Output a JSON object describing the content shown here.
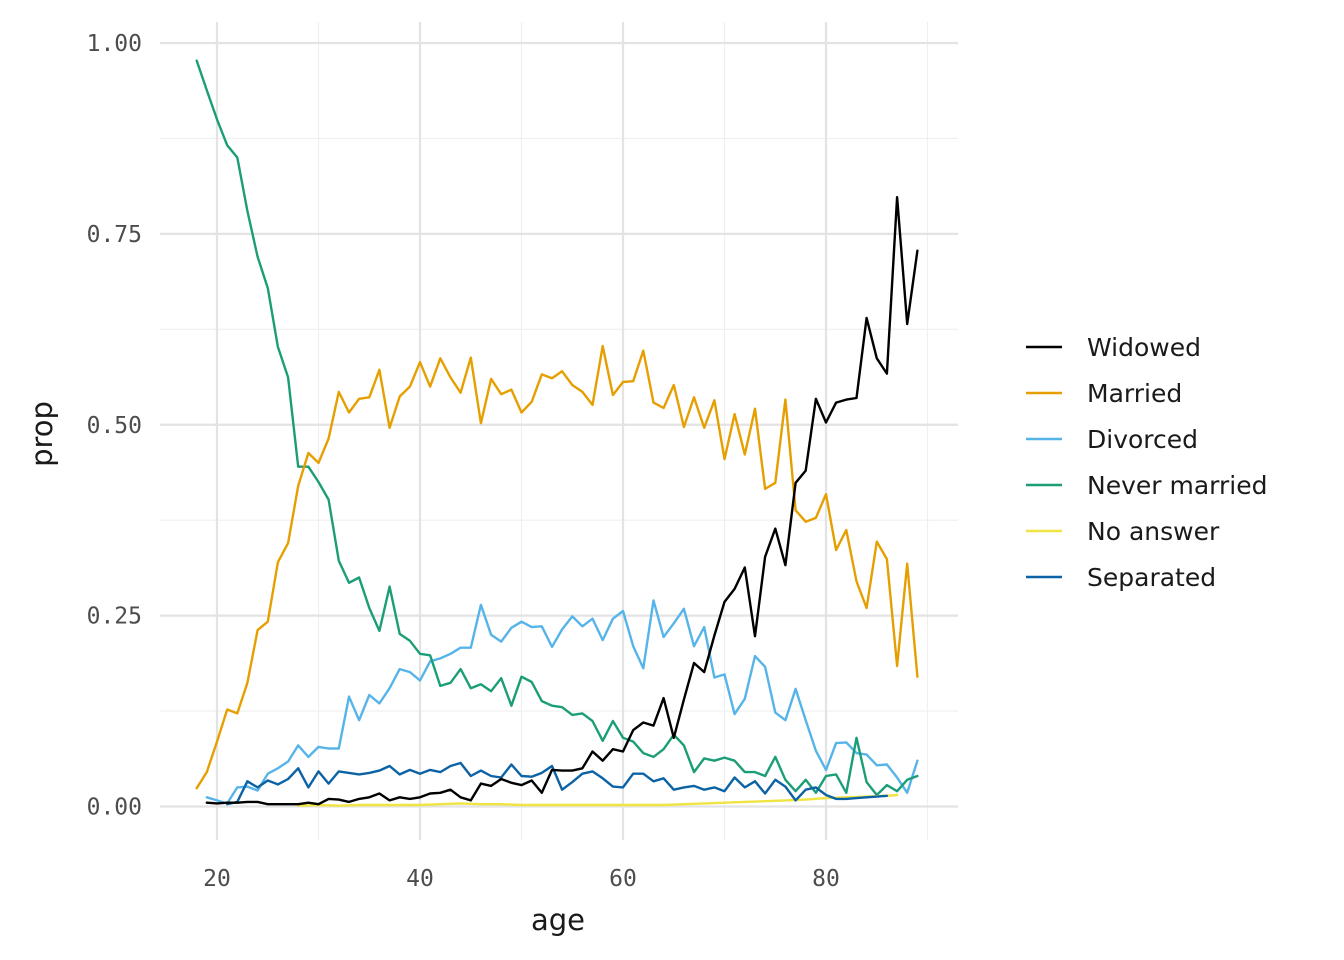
{
  "chart_data": {
    "type": "line",
    "xlabel": "age",
    "ylabel": "prop",
    "xlim": [
      15,
      91.5
    ],
    "ylim": [
      -0.04,
      1.02
    ],
    "x_ticks": [
      20,
      40,
      60,
      80
    ],
    "x_tick_labels": [
      "20",
      "40",
      "60",
      "80"
    ],
    "y_ticks": [
      0,
      0.25,
      0.5,
      0.75,
      1.0
    ],
    "y_tick_labels": [
      "0.00",
      "0.25",
      "0.50",
      "0.75",
      "1.00"
    ],
    "grid": true,
    "legend_position": "right",
    "series": [
      {
        "name": "Widowed",
        "color": "#000000",
        "x": [
          19,
          20,
          21,
          22,
          23,
          24,
          25,
          26,
          27,
          28,
          29,
          30,
          31,
          32,
          33,
          34,
          35,
          36,
          37,
          38,
          39,
          40,
          41,
          42,
          43,
          44,
          45,
          46,
          47,
          48,
          49,
          50,
          51,
          52,
          53,
          54,
          55,
          56,
          57,
          58,
          59,
          60,
          61,
          62,
          63,
          64,
          65,
          66,
          67,
          68,
          69,
          70,
          71,
          72,
          73,
          74,
          75,
          76,
          77,
          78,
          79,
          80,
          81,
          82,
          83,
          84,
          85,
          86,
          87,
          88,
          89
        ],
        "y": [
          0.005,
          0.004,
          0.005,
          0.005,
          0.006,
          0.006,
          0.003,
          0.003,
          0.003,
          0.003,
          0.005,
          0.003,
          0.01,
          0.009,
          0.006,
          0.01,
          0.012,
          0.017,
          0.008,
          0.012,
          0.01,
          0.012,
          0.017,
          0.018,
          0.022,
          0.012,
          0.008,
          0.03,
          0.027,
          0.036,
          0.031,
          0.028,
          0.034,
          0.018,
          0.048,
          0.047,
          0.047,
          0.05,
          0.072,
          0.06,
          0.075,
          0.072,
          0.1,
          0.11,
          0.106,
          0.142,
          0.09,
          0.14,
          0.188,
          0.176,
          0.224,
          0.268,
          0.285,
          0.313,
          0.223,
          0.327,
          0.364,
          0.316,
          0.424,
          0.44,
          0.534,
          0.503,
          0.529,
          0.533,
          0.535,
          0.64,
          0.587,
          0.567,
          0.798,
          0.632,
          0.728
        ]
      },
      {
        "name": "Married",
        "color": "#E69F00",
        "x": [
          18,
          19,
          20,
          21,
          22,
          23,
          24,
          25,
          26,
          27,
          28,
          29,
          30,
          31,
          32,
          33,
          34,
          35,
          36,
          37,
          38,
          39,
          40,
          41,
          42,
          43,
          44,
          45,
          46,
          47,
          48,
          49,
          50,
          51,
          52,
          53,
          54,
          55,
          56,
          57,
          58,
          59,
          60,
          61,
          62,
          63,
          64,
          65,
          66,
          67,
          68,
          69,
          70,
          71,
          72,
          73,
          74,
          75,
          76,
          77,
          78,
          79,
          80,
          81,
          82,
          83,
          84,
          85,
          86,
          87,
          88,
          89
        ],
        "y": [
          0.024,
          0.045,
          0.085,
          0.127,
          0.122,
          0.162,
          0.231,
          0.242,
          0.32,
          0.345,
          0.42,
          0.463,
          0.45,
          0.482,
          0.543,
          0.516,
          0.534,
          0.536,
          0.572,
          0.496,
          0.537,
          0.55,
          0.582,
          0.55,
          0.587,
          0.562,
          0.542,
          0.588,
          0.502,
          0.56,
          0.54,
          0.546,
          0.516,
          0.53,
          0.566,
          0.561,
          0.57,
          0.552,
          0.543,
          0.526,
          0.603,
          0.539,
          0.556,
          0.557,
          0.597,
          0.529,
          0.522,
          0.552,
          0.497,
          0.536,
          0.496,
          0.532,
          0.455,
          0.514,
          0.461,
          0.521,
          0.416,
          0.424,
          0.533,
          0.388,
          0.373,
          0.378,
          0.409,
          0.336,
          0.362,
          0.295,
          0.26,
          0.347,
          0.324,
          0.184,
          0.318,
          0.17
        ]
      },
      {
        "name": "Divorced",
        "color": "#56B4E9",
        "x": [
          19,
          20,
          21,
          22,
          23,
          24,
          25,
          26,
          27,
          28,
          29,
          30,
          31,
          32,
          33,
          34,
          35,
          36,
          37,
          38,
          39,
          40,
          41,
          42,
          43,
          44,
          45,
          46,
          47,
          48,
          49,
          50,
          51,
          52,
          53,
          54,
          55,
          56,
          57,
          58,
          59,
          60,
          61,
          62,
          63,
          64,
          65,
          66,
          67,
          68,
          69,
          70,
          71,
          72,
          73,
          74,
          75,
          76,
          77,
          78,
          79,
          80,
          81,
          82,
          83,
          84,
          85,
          86,
          87,
          88,
          89
        ],
        "y": [
          0.012,
          0.008,
          0.004,
          0.025,
          0.026,
          0.021,
          0.043,
          0.05,
          0.059,
          0.08,
          0.065,
          0.078,
          0.076,
          0.076,
          0.144,
          0.113,
          0.146,
          0.135,
          0.155,
          0.18,
          0.176,
          0.165,
          0.19,
          0.194,
          0.2,
          0.208,
          0.208,
          0.264,
          0.225,
          0.216,
          0.234,
          0.242,
          0.235,
          0.236,
          0.209,
          0.232,
          0.249,
          0.236,
          0.246,
          0.218,
          0.246,
          0.256,
          0.21,
          0.181,
          0.27,
          0.222,
          0.24,
          0.259,
          0.21,
          0.235,
          0.169,
          0.173,
          0.121,
          0.141,
          0.197,
          0.183,
          0.123,
          0.113,
          0.154,
          0.113,
          0.073,
          0.048,
          0.083,
          0.084,
          0.07,
          0.068,
          0.054,
          0.055,
          0.038,
          0.018,
          0.06
        ]
      },
      {
        "name": "Never married",
        "color": "#1B9E77",
        "x": [
          18,
          19,
          20,
          21,
          22,
          23,
          24,
          25,
          26,
          27,
          28,
          29,
          30,
          31,
          32,
          33,
          34,
          35,
          36,
          37,
          38,
          39,
          40,
          41,
          42,
          43,
          44,
          45,
          46,
          47,
          48,
          49,
          50,
          51,
          52,
          53,
          54,
          55,
          56,
          57,
          58,
          59,
          60,
          61,
          62,
          63,
          64,
          65,
          66,
          67,
          68,
          69,
          70,
          71,
          72,
          73,
          74,
          75,
          76,
          77,
          78,
          79,
          80,
          81,
          82,
          83,
          84,
          85,
          86,
          87,
          88,
          89
        ],
        "y": [
          0.977,
          0.938,
          0.9,
          0.866,
          0.85,
          0.78,
          0.72,
          0.679,
          0.602,
          0.562,
          0.445,
          0.445,
          0.425,
          0.402,
          0.322,
          0.293,
          0.3,
          0.26,
          0.23,
          0.288,
          0.226,
          0.217,
          0.2,
          0.198,
          0.158,
          0.162,
          0.18,
          0.155,
          0.16,
          0.151,
          0.168,
          0.132,
          0.17,
          0.163,
          0.138,
          0.132,
          0.13,
          0.12,
          0.122,
          0.112,
          0.086,
          0.112,
          0.09,
          0.085,
          0.07,
          0.065,
          0.075,
          0.094,
          0.08,
          0.045,
          0.063,
          0.06,
          0.064,
          0.06,
          0.045,
          0.045,
          0.04,
          0.065,
          0.035,
          0.02,
          0.035,
          0.018,
          0.04,
          0.042,
          0.018,
          0.09,
          0.032,
          0.015,
          0.028,
          0.02,
          0.035,
          0.04
        ]
      },
      {
        "name": "No answer",
        "color": "#F0E442",
        "x": [
          28,
          30,
          32,
          34,
          36,
          38,
          40,
          42,
          44,
          46,
          48,
          50,
          52,
          54,
          56,
          58,
          60,
          62,
          64,
          66,
          68,
          70,
          72,
          74,
          76,
          78,
          80,
          82,
          84,
          86,
          87
        ],
        "y": [
          0.001,
          0.002,
          0.001,
          0.002,
          0.002,
          0.002,
          0.002,
          0.003,
          0.004,
          0.003,
          0.003,
          0.002,
          0.002,
          0.002,
          0.002,
          0.002,
          0.002,
          0.002,
          0.002,
          0.003,
          0.004,
          0.005,
          0.006,
          0.007,
          0.008,
          0.009,
          0.011,
          0.012,
          0.013,
          0.014,
          0.015
        ]
      },
      {
        "name": "Separated",
        "color": "#0B62A4",
        "x": [
          21,
          22,
          23,
          24,
          25,
          26,
          27,
          28,
          29,
          30,
          31,
          32,
          33,
          34,
          35,
          36,
          37,
          38,
          39,
          40,
          41,
          42,
          43,
          44,
          45,
          46,
          47,
          48,
          49,
          50,
          51,
          52,
          53,
          54,
          55,
          56,
          57,
          58,
          59,
          60,
          61,
          62,
          63,
          64,
          65,
          66,
          67,
          68,
          69,
          70,
          71,
          72,
          73,
          74,
          75,
          76,
          77,
          78,
          79,
          80,
          81,
          82,
          83,
          84,
          85,
          86
        ],
        "y": [
          0.003,
          0.006,
          0.033,
          0.025,
          0.034,
          0.029,
          0.036,
          0.05,
          0.025,
          0.046,
          0.03,
          0.046,
          0.044,
          0.042,
          0.044,
          0.047,
          0.053,
          0.042,
          0.048,
          0.043,
          0.048,
          0.045,
          0.053,
          0.057,
          0.04,
          0.047,
          0.04,
          0.038,
          0.055,
          0.04,
          0.039,
          0.044,
          0.053,
          0.022,
          0.032,
          0.043,
          0.046,
          0.037,
          0.026,
          0.025,
          0.043,
          0.043,
          0.033,
          0.037,
          0.022,
          0.025,
          0.027,
          0.022,
          0.025,
          0.02,
          0.038,
          0.025,
          0.033,
          0.017,
          0.035,
          0.026,
          0.008,
          0.022,
          0.025,
          0.015,
          0.01,
          0.01,
          0.011,
          0.012,
          0.013,
          0.014
        ]
      }
    ]
  }
}
